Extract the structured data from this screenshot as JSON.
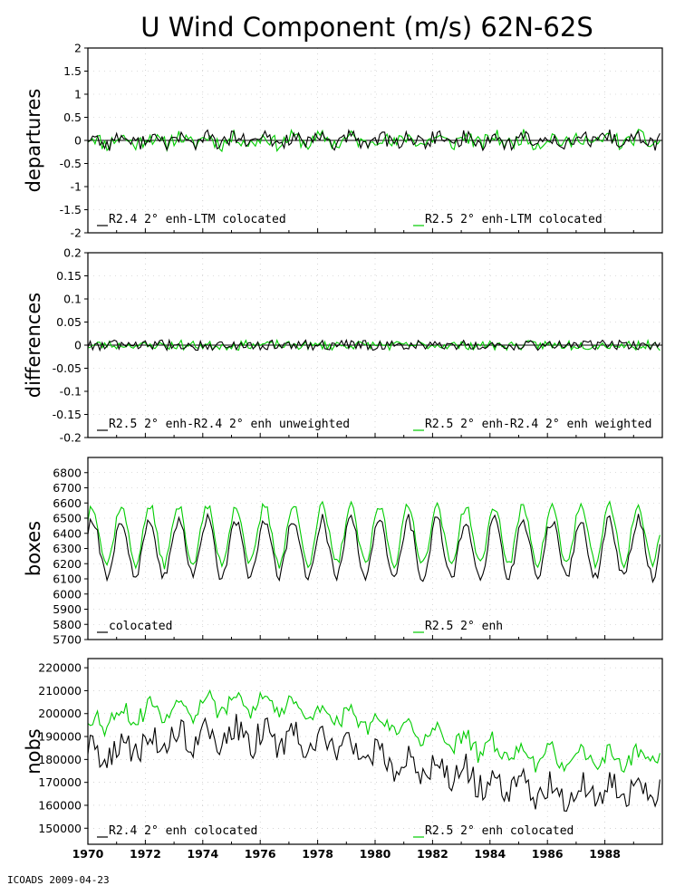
{
  "title": "U Wind Component (m/s) 62N-62S",
  "footer": "ICOADS 2009-04-23",
  "colors": {
    "black": "#000000",
    "green": "#00cc00",
    "grid": "#bbbbbb"
  },
  "chart_data": [
    {
      "type": "line",
      "ylabel": "departures",
      "ylim": [
        -2,
        2
      ],
      "yticks": [
        "2",
        "1.5",
        "1",
        "0.5",
        "0",
        "-0.5",
        "-1",
        "-1.5",
        "-2"
      ],
      "ytick_values": [
        2,
        1.5,
        1,
        0.5,
        0,
        -0.5,
        -1,
        -1.5,
        -2
      ],
      "zero_line": true,
      "series": [
        {
          "name": "R2.4 2° enh-LTM colocated",
          "color": "#000000",
          "base": 0,
          "amp": 0.16,
          "season": 0.08,
          "seed": 11,
          "tie": 0
        },
        {
          "name": "R2.5 2° enh-LTM colocated",
          "color": "#00cc00",
          "base": 0,
          "amp": 0.17,
          "season": 0.08,
          "seed": 11,
          "tie": 0.95
        }
      ]
    },
    {
      "type": "line",
      "ylabel": "differences",
      "ylim": [
        -0.2,
        0.2
      ],
      "yticks": [
        "0.2",
        "0.15",
        "0.1",
        "0.05",
        "0",
        "-0.05",
        "-0.1",
        "-0.15",
        "-0.2"
      ],
      "ytick_values": [
        0.2,
        0.15,
        0.1,
        0.05,
        0,
        -0.05,
        -0.1,
        -0.15,
        -0.2
      ],
      "zero_line": true,
      "series": [
        {
          "name": "R2.5 2° enh-R2.4 2° enh unweighted",
          "color": "#000000",
          "base": 0,
          "amp": 0.011,
          "season": 0,
          "seed": 23,
          "tie": 0
        },
        {
          "name": "R2.5 2° enh-R2.4 2° enh weighted",
          "color": "#00cc00",
          "base": 0,
          "amp": 0.012,
          "season": 0,
          "seed": 23,
          "tie": 0.8
        }
      ]
    },
    {
      "type": "line",
      "ylabel": "boxes",
      "ylim": [
        5700,
        6900
      ],
      "yticks": [
        "6800",
        "6700",
        "6600",
        "6500",
        "6400",
        "6300",
        "6200",
        "6100",
        "6000",
        "5900",
        "5800",
        "5700"
      ],
      "ytick_values": [
        6800,
        6700,
        6600,
        6500,
        6400,
        6300,
        6200,
        6100,
        6000,
        5900,
        5800,
        5700
      ],
      "zero_line": false,
      "series": [
        {
          "name": "colocated",
          "color": "#000000",
          "base": 6300,
          "amp": 40,
          "season": 190,
          "seed": 37,
          "tie": 0
        },
        {
          "name": "R2.5 2° enh",
          "color": "#00cc00",
          "base": 6390,
          "amp": 40,
          "season": 190,
          "seed": 37,
          "tie": 0.8
        }
      ]
    },
    {
      "type": "line",
      "ylabel": "nobs",
      "ylim": [
        143000,
        224000
      ],
      "yticks": [
        "220000",
        "210000",
        "200000",
        "190000",
        "180000",
        "170000",
        "160000",
        "150000"
      ],
      "ytick_values": [
        220000,
        210000,
        200000,
        190000,
        180000,
        170000,
        160000,
        150000
      ],
      "zero_line": false,
      "series": [
        {
          "name": "R2.4 2° enh colocated",
          "color": "#000000",
          "base": 178000,
          "amp": 6000,
          "season": 4000,
          "seed": 53,
          "tie": 0
        },
        {
          "name": "R2.5 2° enh colocated",
          "color": "#00cc00",
          "base": 192000,
          "amp": 5000,
          "season": 3500,
          "seed": 53,
          "tie": 0.6
        }
      ]
    }
  ],
  "xaxis": {
    "start": 1970,
    "end": 1990,
    "ticks": [
      "1970",
      "1972",
      "1974",
      "1976",
      "1978",
      "1980",
      "1982",
      "1984",
      "1986",
      "1988"
    ],
    "tick_values": [
      1970,
      1972,
      1974,
      1976,
      1978,
      1980,
      1982,
      1984,
      1986,
      1988
    ]
  }
}
